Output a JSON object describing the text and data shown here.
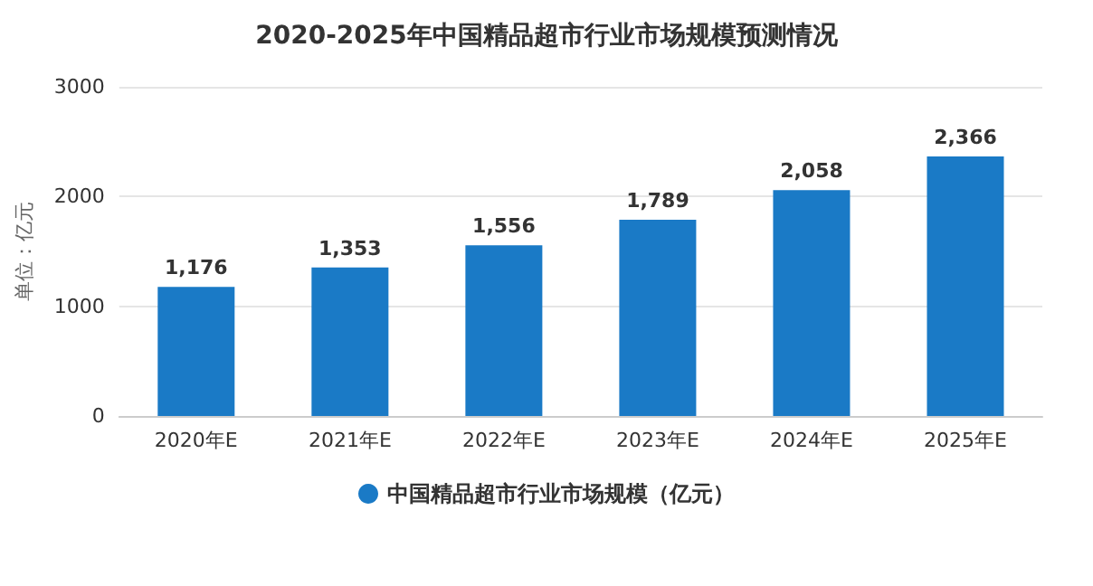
{
  "chart_data": {
    "type": "bar",
    "title": "2020-2025年中国精品超市行业市场规模预测情况",
    "ylabel": "单位：亿元",
    "categories": [
      "2020年E",
      "2021年E",
      "2022年E",
      "2023年E",
      "2024年E",
      "2025年E"
    ],
    "series": [
      {
        "name": "中国精品超市行业市场规模（亿元）",
        "color": "#1a7ac6",
        "values": [
          1176,
          1353,
          1556,
          1789,
          2058,
          2366
        ]
      }
    ],
    "value_labels": [
      "1,176",
      "1,353",
      "1,556",
      "1,789",
      "2,058",
      "2,366"
    ],
    "ylim": [
      0,
      3000
    ],
    "yticks": [
      0,
      1000,
      2000,
      3000
    ],
    "grid": "y",
    "legend": "bottom"
  }
}
